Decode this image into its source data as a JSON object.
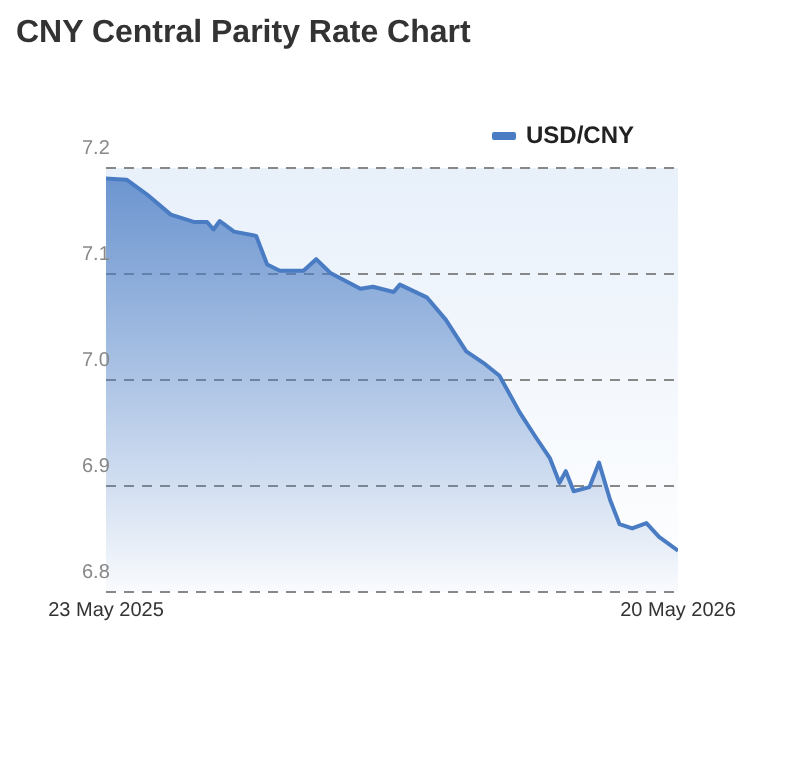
{
  "chart_data": {
    "type": "area",
    "title": "CNY Central Parity Rate Chart",
    "x": [
      "2025-05-23",
      "2025-06-05",
      "2025-06-18",
      "2025-07-03",
      "2025-07-18",
      "2025-07-26",
      "2025-07-30",
      "2025-08-03",
      "2025-08-12",
      "2025-08-26",
      "2025-09-02",
      "2025-09-10",
      "2025-09-25",
      "2025-10-03",
      "2025-10-12",
      "2025-10-31",
      "2025-11-08",
      "2025-11-21",
      "2025-11-25",
      "2025-12-12",
      "2025-12-24",
      "2026-01-06",
      "2026-01-17",
      "2026-01-27",
      "2026-02-09",
      "2026-02-19",
      "2026-02-28",
      "2026-03-06",
      "2026-03-10",
      "2026-03-15",
      "2026-03-25",
      "2026-03-31",
      "2026-04-07",
      "2026-04-13",
      "2026-04-21",
      "2026-04-30",
      "2026-05-08",
      "2026-05-20"
    ],
    "series": [
      {
        "name": "USD/CNY",
        "color": "#4a7cc4",
        "values": [
          7.19,
          7.189,
          7.175,
          7.156,
          7.149,
          7.149,
          7.142,
          7.15,
          7.14,
          7.136,
          7.109,
          7.103,
          7.103,
          7.114,
          7.101,
          7.086,
          7.088,
          7.083,
          7.09,
          7.078,
          7.057,
          7.027,
          7.016,
          7.004,
          6.969,
          6.946,
          6.926,
          6.903,
          6.914,
          6.895,
          6.899,
          6.922,
          6.887,
          6.864,
          6.86,
          6.865,
          6.852,
          6.839
        ]
      }
    ],
    "xlim": [
      "2025-05-23",
      "2026-05-20"
    ],
    "xticks": [
      {
        "value": "2025-05-23",
        "label": "23 May 2025"
      },
      {
        "value": "2026-05-20",
        "label": "20 May 2026"
      }
    ],
    "ylim": [
      6.8,
      7.2
    ],
    "yticks": [
      6.8,
      6.9,
      {
        "value": 7.0,
        "label": "7.0"
      },
      7.1,
      7.2
    ],
    "grid": "y",
    "legend": "top right",
    "marker": "none",
    "line_style": "solid"
  }
}
